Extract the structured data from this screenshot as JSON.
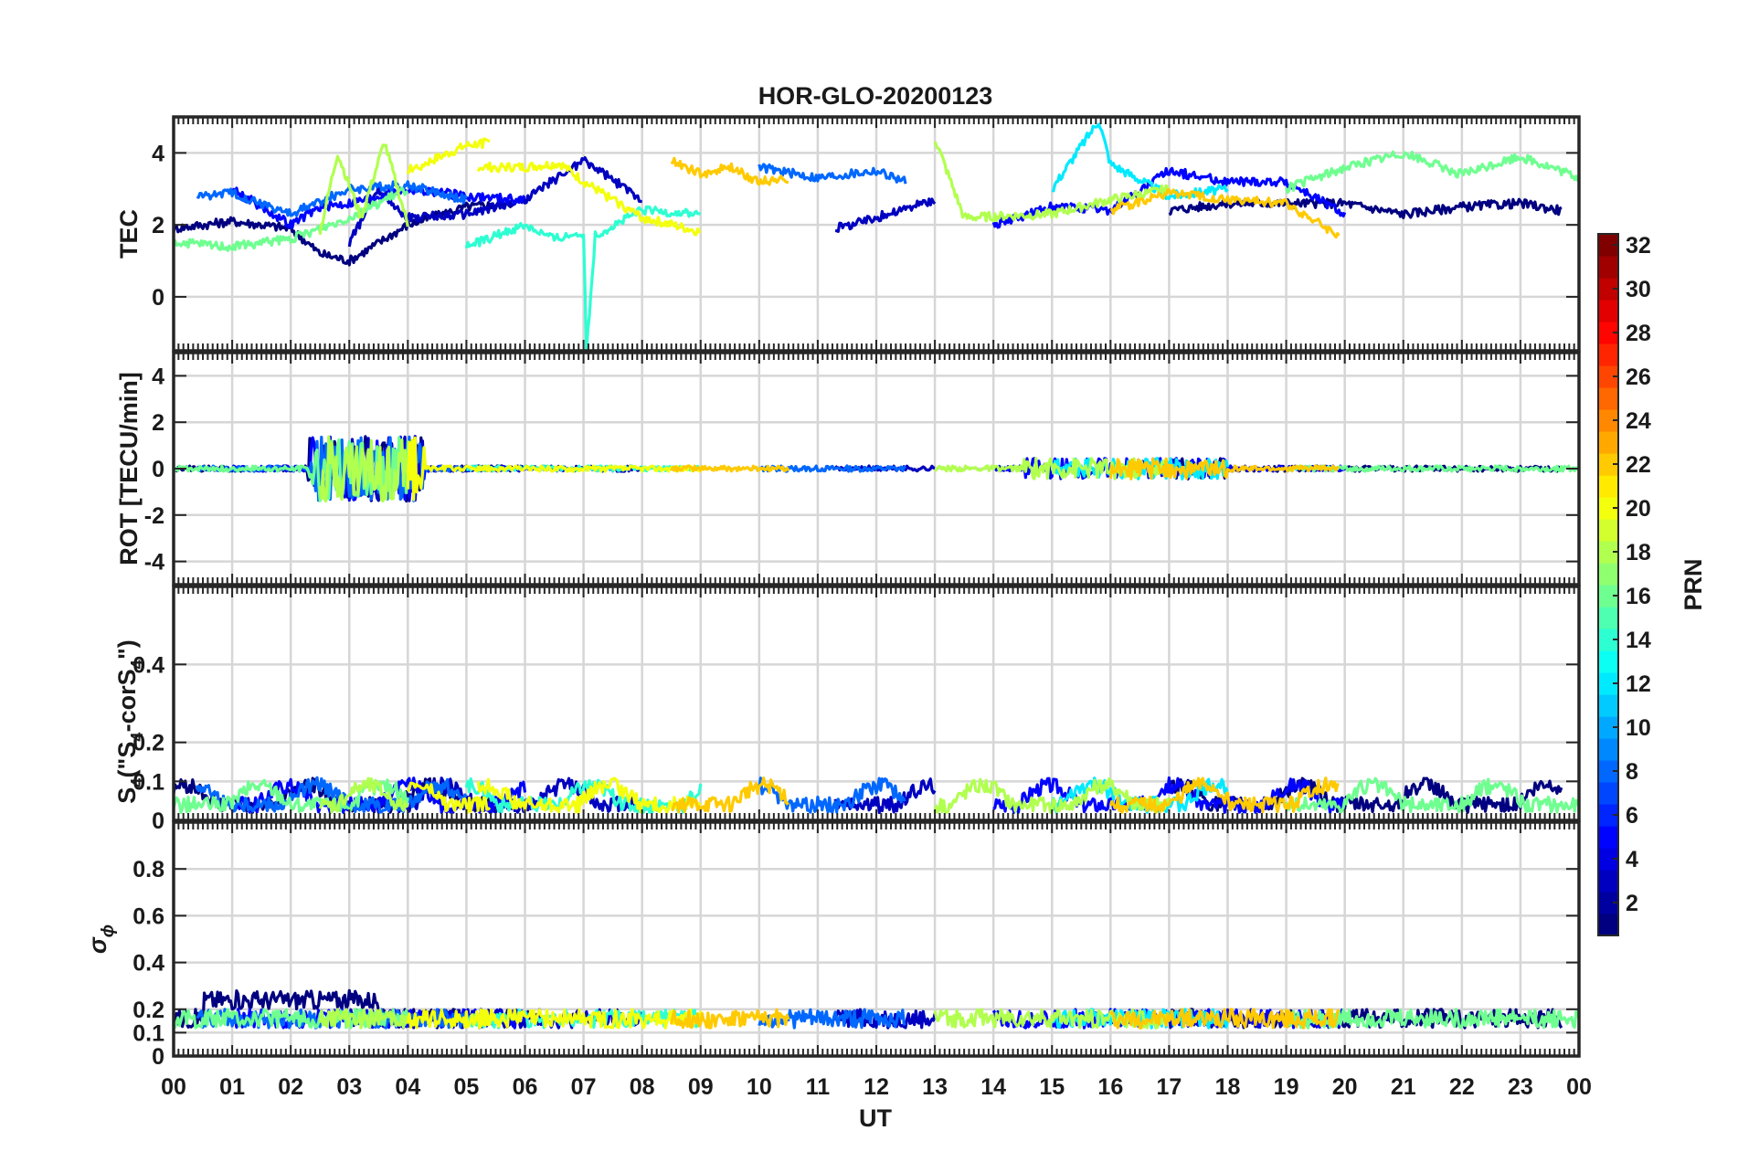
{
  "chart_data": {
    "type": "line",
    "title": "HOR-GLO-20200123",
    "xlabel": "UT",
    "x_range_hours": [
      0,
      24
    ],
    "x_tick_labels": [
      "00",
      "01",
      "02",
      "03",
      "04",
      "05",
      "06",
      "07",
      "08",
      "09",
      "10",
      "11",
      "12",
      "13",
      "14",
      "15",
      "16",
      "17",
      "18",
      "19",
      "20",
      "21",
      "22",
      "23",
      "00"
    ],
    "grid": true,
    "panels": [
      {
        "key": "tec",
        "ylabel": "TEC",
        "ylim": [
          -1.5,
          5
        ],
        "yticks": [
          0,
          2,
          4
        ],
        "ytick_labels": [
          "0",
          "2",
          "4"
        ]
      },
      {
        "key": "rot",
        "ylabel": "ROT [TECU/min]",
        "ylim": [
          -5,
          5
        ],
        "yticks": [
          -4,
          -2,
          0,
          2,
          4
        ],
        "ytick_labels": [
          "-4",
          "-2",
          "0",
          "2",
          "4"
        ]
      },
      {
        "key": "s4",
        "ylabel_main": "S",
        "ylabel_sub": "4",
        "ylabel_rest1": " (\"S",
        "ylabel_sub2": "4",
        "ylabel_rest2": "-corS",
        "ylabel_sub3": "4",
        "ylabel_rest3": "\")",
        "ylim": [
          0,
          0.6
        ],
        "yticks": [
          0,
          0.1,
          0.2,
          0.4
        ],
        "ytick_labels": [
          "0",
          "0.1",
          "0.2",
          "0.4"
        ]
      },
      {
        "key": "sigma",
        "ylabel_symbol": "σ",
        "ylabel_sub": "ϕ",
        "ylim": [
          0,
          1
        ],
        "yticks": [
          0,
          0.1,
          0.2,
          0.4,
          0.6,
          0.8
        ],
        "ytick_labels": [
          "0",
          "0.1",
          "0.2",
          "0.4",
          "0.6",
          "0.8"
        ]
      }
    ],
    "colorbar": {
      "label": "PRN",
      "range": [
        1,
        32
      ],
      "ticks": [
        2,
        4,
        6,
        8,
        10,
        12,
        14,
        16,
        18,
        20,
        22,
        24,
        26,
        28,
        30,
        32
      ],
      "tick_labels": [
        "2",
        "4",
        "6",
        "8",
        "10",
        "12",
        "14",
        "16",
        "18",
        "20",
        "22",
        "24",
        "26",
        "28",
        "30",
        "32"
      ],
      "colormap": "jet"
    },
    "series": [
      {
        "prn": 1,
        "tec": [
          [
            0,
            1.9
          ],
          [
            1,
            2.1
          ],
          [
            2,
            1.9
          ],
          [
            2.5,
            1.2
          ],
          [
            3,
            1.0
          ],
          [
            4,
            2.0
          ],
          [
            5,
            2.5
          ],
          [
            5.8,
            2.6
          ]
        ],
        "tec2": [
          [
            17,
            2.4
          ],
          [
            18,
            2.6
          ],
          [
            20,
            2.6
          ],
          [
            21,
            2.3
          ],
          [
            22,
            2.5
          ],
          [
            23,
            2.6
          ],
          [
            23.7,
            2.4
          ]
        ]
      },
      {
        "prn": 3,
        "tec": [
          [
            3,
            1.5
          ],
          [
            3.5,
            3.0
          ],
          [
            4,
            2.2
          ],
          [
            5,
            2.3
          ],
          [
            6,
            2.7
          ],
          [
            7,
            3.8
          ],
          [
            8,
            2.7
          ]
        ],
        "tec2": [
          [
            11.3,
            1.9
          ],
          [
            12,
            2.2
          ],
          [
            13,
            2.7
          ]
        ]
      },
      {
        "prn": 5,
        "tec": [
          [
            1,
            3.0
          ],
          [
            2,
            2.0
          ],
          [
            2.5,
            2.5
          ],
          [
            3,
            2.6
          ],
          [
            4,
            3.0
          ],
          [
            5,
            2.8
          ],
          [
            6,
            2.7
          ]
        ],
        "tec2": [
          [
            14,
            2.0
          ],
          [
            15,
            2.5
          ],
          [
            16,
            2.4
          ],
          [
            17,
            3.5
          ],
          [
            18,
            3.2
          ],
          [
            19,
            3.2
          ],
          [
            20,
            2.3
          ]
        ]
      },
      {
        "prn": 8,
        "tec": [
          [
            0.4,
            2.8
          ],
          [
            1,
            2.9
          ],
          [
            2,
            2.3
          ],
          [
            3,
            3.0
          ],
          [
            4,
            3.1
          ],
          [
            5,
            2.7
          ]
        ],
        "tec2": [
          [
            10,
            3.6
          ],
          [
            11,
            3.3
          ],
          [
            12,
            3.5
          ],
          [
            12.5,
            3.2
          ]
        ]
      },
      {
        "prn": 12,
        "tec": [
          [
            15,
            3.0
          ],
          [
            15.5,
            4.2
          ],
          [
            15.8,
            4.9
          ],
          [
            16,
            3.7
          ],
          [
            17,
            2.8
          ],
          [
            18,
            3.0
          ]
        ]
      },
      {
        "prn": 14,
        "tec": [
          [
            5,
            1.4
          ],
          [
            6,
            2.0
          ],
          [
            6.5,
            1.6
          ],
          [
            7,
            1.8
          ],
          [
            7.05,
            -1.5
          ],
          [
            7.2,
            1.7
          ],
          [
            8,
            2.4
          ],
          [
            9,
            2.3
          ]
        ]
      },
      {
        "prn": 16,
        "tec": [
          [
            0,
            1.5
          ],
          [
            1,
            1.4
          ],
          [
            2,
            1.6
          ],
          [
            3,
            2.2
          ],
          [
            4,
            3.0
          ]
        ],
        "tec2": [
          [
            19,
            3.0
          ],
          [
            20,
            3.6
          ],
          [
            21,
            4.0
          ],
          [
            22,
            3.4
          ],
          [
            23,
            3.9
          ],
          [
            24,
            3.3
          ]
        ]
      },
      {
        "prn": 18,
        "tec": [
          [
            2.5,
            1.8
          ],
          [
            2.8,
            4.0
          ],
          [
            3.2,
            2.2
          ],
          [
            3.6,
            4.3
          ],
          [
            4,
            2.0
          ]
        ],
        "tec2": [
          [
            13,
            4.4
          ],
          [
            13.5,
            2.2
          ],
          [
            15,
            2.3
          ],
          [
            16,
            2.7
          ],
          [
            17,
            3.0
          ]
        ]
      },
      {
        "prn": 20,
        "tec": [
          [
            4,
            3.5
          ],
          [
            5,
            4.2
          ],
          [
            5.4,
            4.3
          ]
        ],
        "tec2": [
          [
            5.2,
            3.6
          ],
          [
            6,
            3.6
          ],
          [
            6.6,
            3.7
          ],
          [
            7,
            3.2
          ],
          [
            8,
            2.2
          ],
          [
            9,
            1.8
          ]
        ]
      },
      {
        "prn": 22,
        "tec": [
          [
            8.5,
            3.8
          ],
          [
            9,
            3.4
          ],
          [
            9.5,
            3.6
          ],
          [
            10,
            3.2
          ],
          [
            10.5,
            3.3
          ]
        ],
        "tec2": [
          [
            16,
            2.4
          ],
          [
            17,
            2.9
          ],
          [
            18,
            2.7
          ],
          [
            19,
            2.6
          ],
          [
            19.9,
            1.7
          ]
        ]
      }
    ]
  }
}
